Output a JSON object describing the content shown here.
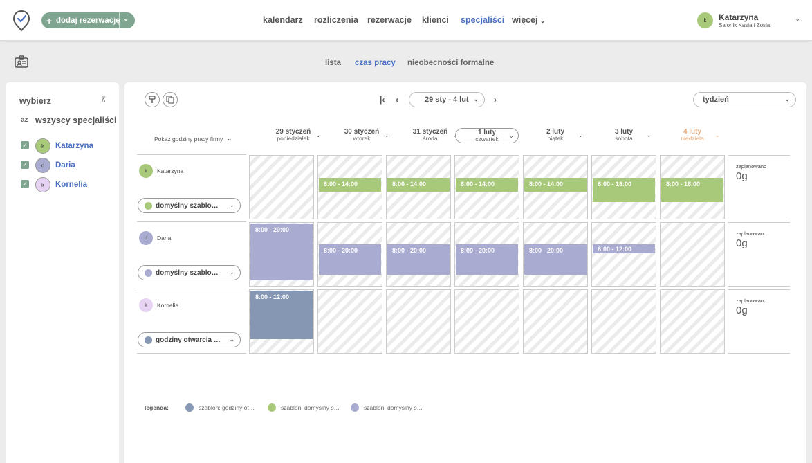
{
  "colors": {
    "accent": "#4a6fc1",
    "green_template": "#a9c97a",
    "lavender_template": "#a9abd0",
    "slate_template": "#8597b2",
    "sunday": "#e9ab7a",
    "brand_button": "#7fa48f"
  },
  "header": {
    "add_button_label": "dodaj rezerwację",
    "nav": [
      "kalendarz",
      "rozliczenia",
      "rezerwacje",
      "klienci",
      "specjaliści",
      "więcej"
    ],
    "active_nav": "specjaliści",
    "user": {
      "initial": "k",
      "name": "Katarzyna",
      "subtitle": "Salonik Kasia i Zosia"
    }
  },
  "subnav": {
    "tabs": [
      "lista",
      "czas pracy",
      "nieobecności formalne"
    ],
    "active": "czas pracy"
  },
  "sidebar": {
    "title": "wybierz",
    "sort_icon_label": "az",
    "all_label": "wszyscy specjaliści",
    "items": [
      {
        "initial": "k",
        "name": "Katarzyna",
        "checked": true
      },
      {
        "initial": "d",
        "name": "Daria",
        "checked": true
      },
      {
        "initial": "k",
        "name": "Kornelia",
        "checked": true
      }
    ]
  },
  "toolbar": {
    "date_range": "29 sty - 4 lut",
    "view": "tydzień",
    "show_hours_label": "Pokaż godziny pracy firmy"
  },
  "days": [
    {
      "date": "29 styczeń",
      "weekday": "poniedziałek"
    },
    {
      "date": "30 styczeń",
      "weekday": "wtorek"
    },
    {
      "date": "31 styczeń",
      "weekday": "środa"
    },
    {
      "date": "1 luty",
      "weekday": "czwartek"
    },
    {
      "date": "2 luty",
      "weekday": "piątek"
    },
    {
      "date": "3 luty",
      "weekday": "sobota"
    },
    {
      "date": "4 luty",
      "weekday": "niedziela"
    }
  ],
  "people": [
    {
      "initial": "k",
      "name": "Katarzyna",
      "template": "domyślny szablon specjalisty",
      "blocks": [
        null,
        "8:00 - 14:00",
        "8:00 - 14:00",
        "8:00 - 14:00",
        "8:00 - 14:00",
        "8:00 - 18:00",
        "8:00 - 18:00"
      ],
      "planned_label": "zaplanowano",
      "planned_value": "0g"
    },
    {
      "initial": "d",
      "name": "Daria",
      "template": "domyślny szablon specjalisty",
      "blocks": [
        "8:00 - 20:00",
        "8:00 - 20:00",
        "8:00 - 20:00",
        "8:00 - 20:00",
        "8:00 - 20:00",
        "8:00 - 12:00",
        null
      ],
      "planned_label": "zaplanowano",
      "planned_value": "0g"
    },
    {
      "initial": "k",
      "name": "Kornelia",
      "template": "godziny otwarcia firmy",
      "blocks": [
        "8:00 - 12:00",
        null,
        null,
        null,
        null,
        null,
        null
      ],
      "planned_label": "zaplanowano",
      "planned_value": "0g"
    }
  ],
  "legend": {
    "title": "legenda:",
    "items": [
      "szablon: godziny otwarcia firmy",
      "szablon: domyślny szablon specjalisty",
      "szablon: domyślny szablon specjalisty"
    ]
  }
}
